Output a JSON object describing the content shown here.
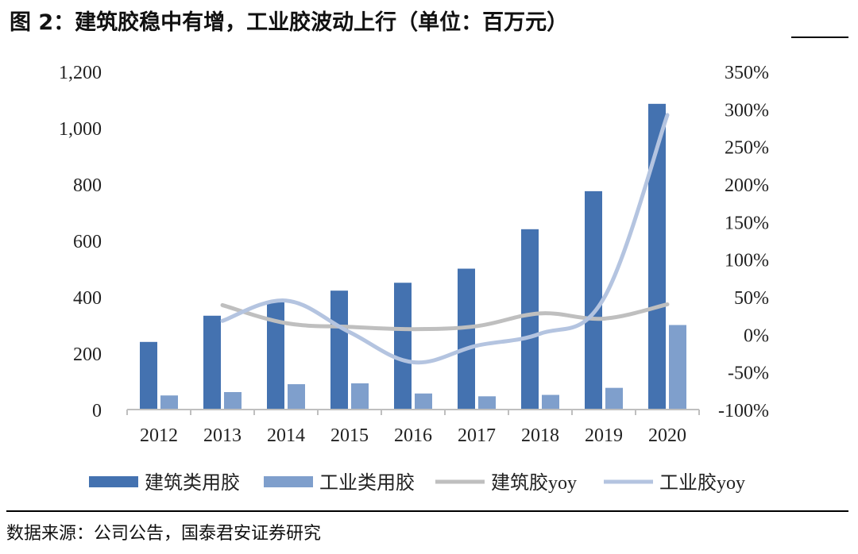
{
  "header": {
    "title": "图 2：建筑胶稳中有增，工业胶波动上行（单位：百万元）"
  },
  "footer": {
    "source": "数据来源：公司公告，国泰君安证券研究"
  },
  "colors": {
    "bar1": "#4472b0",
    "bar2": "#7f9fcc",
    "line1": "#bfbfbf",
    "line2": "#b4c4e0",
    "axis": "#bfbfbf"
  },
  "chart_data": {
    "type": "bar",
    "categories": [
      "2012",
      "2013",
      "2014",
      "2015",
      "2016",
      "2017",
      "2018",
      "2019",
      "2020"
    ],
    "series": [
      {
        "name": "建筑类用胶",
        "type": "bar",
        "axis": "left",
        "values": [
          240,
          333,
          383,
          422,
          450,
          500,
          640,
          775,
          1085
        ]
      },
      {
        "name": "工业类用胶",
        "type": "bar",
        "axis": "left",
        "values": [
          50,
          62,
          90,
          93,
          57,
          47,
          52,
          77,
          300
        ]
      }
    ],
    "line_series": [
      {
        "name": "建筑胶yoy",
        "type": "line",
        "axis": "right",
        "values": [
          null,
          39,
          15,
          10,
          7,
          11,
          28,
          21,
          40
        ]
      },
      {
        "name": "工业胶yoy",
        "type": "line",
        "axis": "right",
        "values": [
          null,
          18,
          45,
          3,
          -37,
          -15,
          1,
          48,
          292
        ]
      }
    ],
    "left_axis": {
      "ylim": [
        0,
        1200
      ],
      "tick_values": [
        0,
        200,
        400,
        600,
        800,
        1000,
        1200
      ],
      "tick_labels": [
        "0",
        "200",
        "400",
        "600",
        "800",
        "1,000",
        "1,200"
      ]
    },
    "right_axis": {
      "ylim": [
        -100,
        350
      ],
      "tick_values": [
        -100,
        -50,
        0,
        50,
        100,
        150,
        200,
        250,
        300,
        350
      ],
      "tick_labels": [
        "-100%",
        "-50%",
        "0%",
        "50%",
        "100%",
        "150%",
        "200%",
        "250%",
        "300%",
        "350%"
      ]
    },
    "legend_position": "bottom",
    "grid": false
  }
}
